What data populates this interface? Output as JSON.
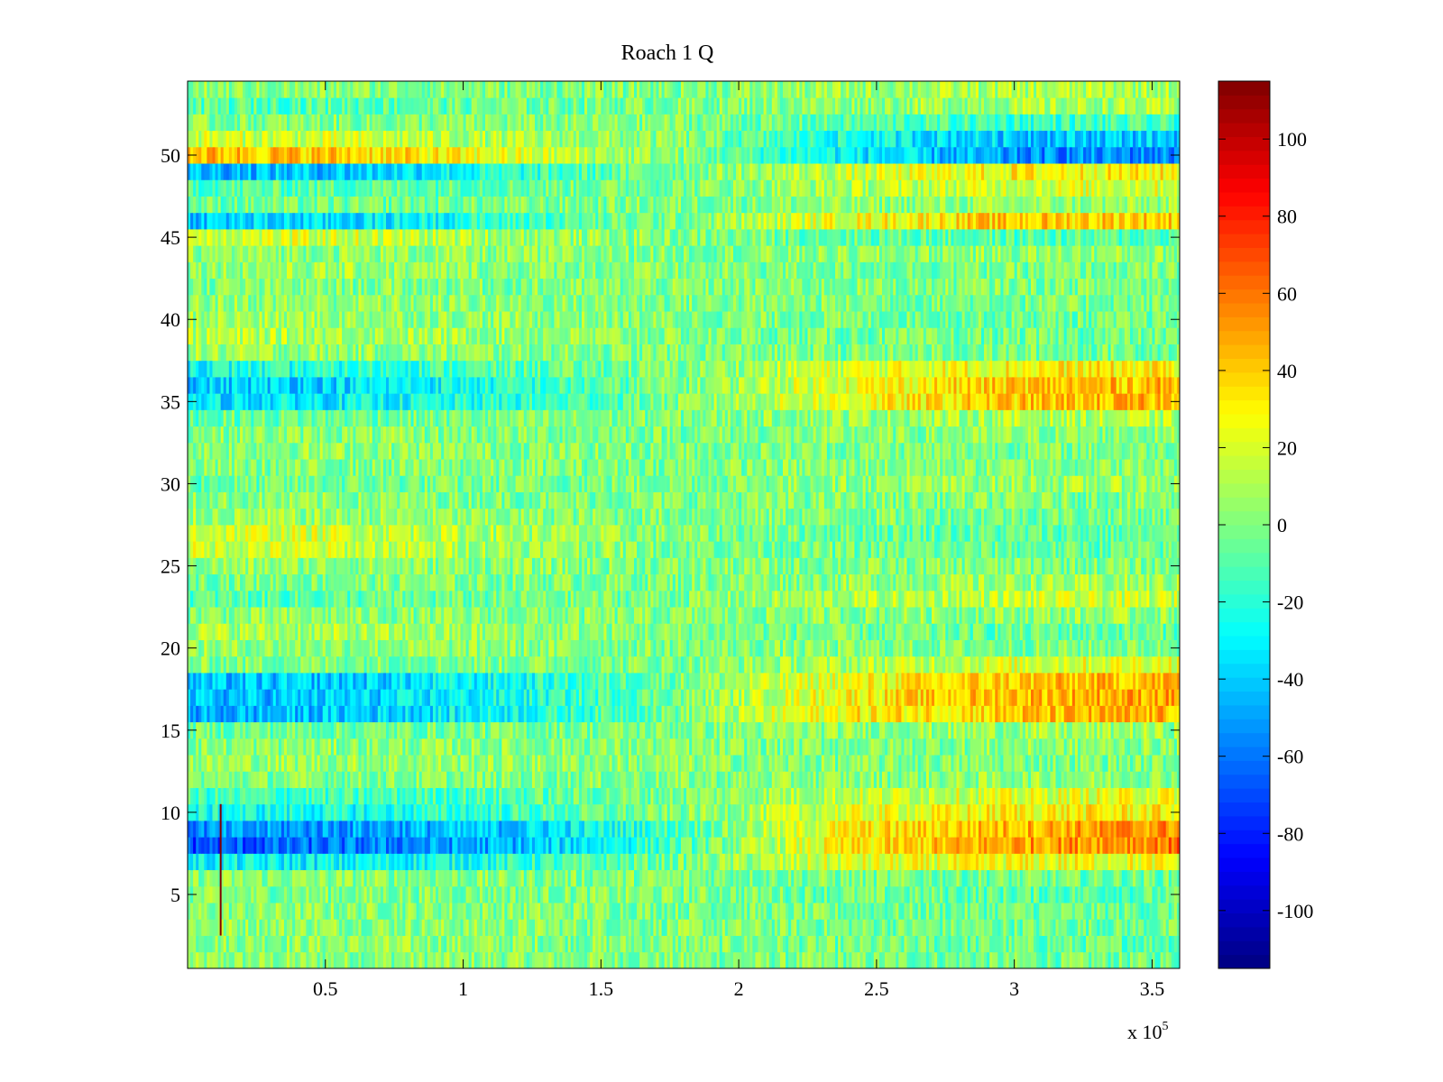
{
  "chart_data": {
    "type": "heatmap",
    "title": "Roach 1 Q",
    "xlabel": "",
    "ylabel": "",
    "x_multiplier_label": "x 10",
    "x_multiplier_exponent": "5",
    "xlim": [
      0,
      360000
    ],
    "ylim": [
      0.5,
      54.5
    ],
    "x_ticks": [
      {
        "value": 50000,
        "label": "0.5"
      },
      {
        "value": 100000,
        "label": "1"
      },
      {
        "value": 150000,
        "label": "1.5"
      },
      {
        "value": 200000,
        "label": "2"
      },
      {
        "value": 250000,
        "label": "2.5"
      },
      {
        "value": 300000,
        "label": "3"
      },
      {
        "value": 350000,
        "label": "3.5"
      }
    ],
    "y_ticks": [
      {
        "value": 5,
        "label": "5"
      },
      {
        "value": 10,
        "label": "10"
      },
      {
        "value": 15,
        "label": "15"
      },
      {
        "value": 20,
        "label": "20"
      },
      {
        "value": 25,
        "label": "25"
      },
      {
        "value": 30,
        "label": "30"
      },
      {
        "value": 35,
        "label": "35"
      },
      {
        "value": 40,
        "label": "40"
      },
      {
        "value": 45,
        "label": "45"
      },
      {
        "value": 50,
        "label": "50"
      }
    ],
    "colormap": "jet",
    "color_limits": [
      -115,
      115
    ],
    "colorbar_ticks": [
      {
        "value": 100,
        "label": "100"
      },
      {
        "value": 80,
        "label": "80"
      },
      {
        "value": 60,
        "label": "60"
      },
      {
        "value": 40,
        "label": "40"
      },
      {
        "value": 20,
        "label": "20"
      },
      {
        "value": 0,
        "label": "0"
      },
      {
        "value": -20,
        "label": "-20"
      },
      {
        "value": -40,
        "label": "-40"
      },
      {
        "value": -60,
        "label": "-60"
      },
      {
        "value": -80,
        "label": "-80"
      },
      {
        "value": -100,
        "label": "-100"
      }
    ],
    "rows": 54,
    "x_sample_points": [
      0,
      60000,
      120000,
      180000,
      240000,
      300000,
      360000
    ],
    "row_mean_values": [
      {
        "row": 1,
        "values": [
          2,
          2,
          2,
          0,
          -2,
          -4,
          -4
        ]
      },
      {
        "row": 2,
        "values": [
          4,
          4,
          2,
          0,
          -4,
          -6,
          -6
        ]
      },
      {
        "row": 3,
        "values": [
          6,
          4,
          2,
          0,
          -2,
          -4,
          -4
        ]
      },
      {
        "row": 4,
        "values": [
          2,
          2,
          2,
          0,
          -4,
          -4,
          -6
        ]
      },
      {
        "row": 5,
        "values": [
          0,
          0,
          0,
          0,
          -4,
          -8,
          -8
        ]
      },
      {
        "row": 6,
        "values": [
          2,
          2,
          0,
          0,
          -2,
          -4,
          -4
        ]
      },
      {
        "row": 7,
        "values": [
          -30,
          -30,
          -20,
          -2,
          20,
          25,
          25
        ]
      },
      {
        "row": 8,
        "values": [
          -70,
          -60,
          -45,
          -10,
          30,
          50,
          60
        ]
      },
      {
        "row": 9,
        "values": [
          -55,
          -50,
          -40,
          -10,
          30,
          45,
          55
        ]
      },
      {
        "row": 10,
        "values": [
          -25,
          -25,
          -15,
          0,
          20,
          30,
          30
        ]
      },
      {
        "row": 11,
        "values": [
          -15,
          -15,
          -10,
          0,
          15,
          20,
          25
        ]
      },
      {
        "row": 12,
        "values": [
          0,
          0,
          0,
          0,
          2,
          4,
          4
        ]
      },
      {
        "row": 13,
        "values": [
          6,
          6,
          4,
          2,
          0,
          0,
          0
        ]
      },
      {
        "row": 14,
        "values": [
          2,
          2,
          2,
          0,
          0,
          2,
          2
        ]
      },
      {
        "row": 15,
        "values": [
          -4,
          -4,
          -2,
          0,
          4,
          6,
          6
        ]
      },
      {
        "row": 16,
        "values": [
          -50,
          -40,
          -25,
          0,
          30,
          40,
          45
        ]
      },
      {
        "row": 17,
        "values": [
          -45,
          -40,
          -25,
          0,
          30,
          45,
          50
        ]
      },
      {
        "row": 18,
        "values": [
          -45,
          -40,
          -25,
          0,
          25,
          40,
          45
        ]
      },
      {
        "row": 19,
        "values": [
          0,
          0,
          0,
          0,
          10,
          20,
          25
        ]
      },
      {
        "row": 20,
        "values": [
          4,
          4,
          2,
          0,
          0,
          0,
          0
        ]
      },
      {
        "row": 21,
        "values": [
          10,
          8,
          4,
          0,
          -4,
          -6,
          -6
        ]
      },
      {
        "row": 22,
        "values": [
          2,
          2,
          0,
          0,
          2,
          4,
          4
        ]
      },
      {
        "row": 23,
        "values": [
          -10,
          -8,
          -4,
          0,
          10,
          15,
          15
        ]
      },
      {
        "row": 24,
        "values": [
          0,
          0,
          0,
          0,
          4,
          6,
          6
        ]
      },
      {
        "row": 25,
        "values": [
          4,
          4,
          2,
          0,
          0,
          0,
          0
        ]
      },
      {
        "row": 26,
        "values": [
          18,
          16,
          8,
          0,
          -4,
          -6,
          -6
        ]
      },
      {
        "row": 27,
        "values": [
          20,
          18,
          8,
          0,
          -4,
          -8,
          -8
        ]
      },
      {
        "row": 28,
        "values": [
          6,
          4,
          2,
          0,
          0,
          -2,
          -2
        ]
      },
      {
        "row": 29,
        "values": [
          2,
          2,
          0,
          0,
          0,
          0,
          0
        ]
      },
      {
        "row": 30,
        "values": [
          -6,
          -4,
          -2,
          0,
          4,
          6,
          6
        ]
      },
      {
        "row": 31,
        "values": [
          0,
          0,
          0,
          0,
          2,
          2,
          2
        ]
      },
      {
        "row": 32,
        "values": [
          4,
          4,
          2,
          0,
          0,
          0,
          0
        ]
      },
      {
        "row": 33,
        "values": [
          2,
          2,
          0,
          0,
          0,
          2,
          2
        ]
      },
      {
        "row": 34,
        "values": [
          -6,
          -4,
          -2,
          0,
          6,
          10,
          10
        ]
      },
      {
        "row": 35,
        "values": [
          -35,
          -30,
          -20,
          0,
          25,
          40,
          45
        ]
      },
      {
        "row": 36,
        "values": [
          -40,
          -35,
          -20,
          0,
          25,
          40,
          45
        ]
      },
      {
        "row": 37,
        "values": [
          -25,
          -20,
          -10,
          0,
          20,
          30,
          30
        ]
      },
      {
        "row": 38,
        "values": [
          6,
          4,
          2,
          0,
          -2,
          -2,
          -2
        ]
      },
      {
        "row": 39,
        "values": [
          12,
          10,
          6,
          0,
          -4,
          -4,
          -4
        ]
      },
      {
        "row": 40,
        "values": [
          8,
          6,
          4,
          0,
          -2,
          -4,
          -4
        ]
      },
      {
        "row": 41,
        "values": [
          4,
          4,
          2,
          0,
          0,
          -2,
          -2
        ]
      },
      {
        "row": 42,
        "values": [
          0,
          0,
          0,
          0,
          0,
          0,
          0
        ]
      },
      {
        "row": 43,
        "values": [
          6,
          6,
          2,
          0,
          -2,
          -2,
          -2
        ]
      },
      {
        "row": 44,
        "values": [
          4,
          4,
          2,
          0,
          2,
          4,
          4
        ]
      },
      {
        "row": 45,
        "values": [
          20,
          18,
          8,
          0,
          -6,
          -10,
          -10
        ]
      },
      {
        "row": 46,
        "values": [
          -40,
          -35,
          -15,
          0,
          25,
          40,
          40
        ]
      },
      {
        "row": 47,
        "values": [
          -4,
          -4,
          -2,
          0,
          2,
          4,
          4
        ]
      },
      {
        "row": 48,
        "values": [
          -10,
          -8,
          -4,
          0,
          10,
          20,
          20
        ]
      },
      {
        "row": 49,
        "values": [
          -45,
          -40,
          -20,
          0,
          15,
          30,
          30
        ]
      },
      {
        "row": 50,
        "values": [
          45,
          40,
          20,
          0,
          -30,
          -55,
          -55
        ]
      },
      {
        "row": 51,
        "values": [
          18,
          16,
          8,
          0,
          -25,
          -40,
          -40
        ]
      },
      {
        "row": 52,
        "values": [
          0,
          0,
          0,
          0,
          -10,
          -15,
          -15
        ]
      },
      {
        "row": 53,
        "values": [
          -10,
          -8,
          -4,
          0,
          4,
          8,
          8
        ]
      },
      {
        "row": 54,
        "values": [
          2,
          2,
          0,
          0,
          6,
          10,
          10
        ]
      }
    ],
    "noise_amplitude": 18,
    "spike": {
      "x": 12000,
      "row_from": 3,
      "row_to": 10,
      "value": 115
    }
  }
}
